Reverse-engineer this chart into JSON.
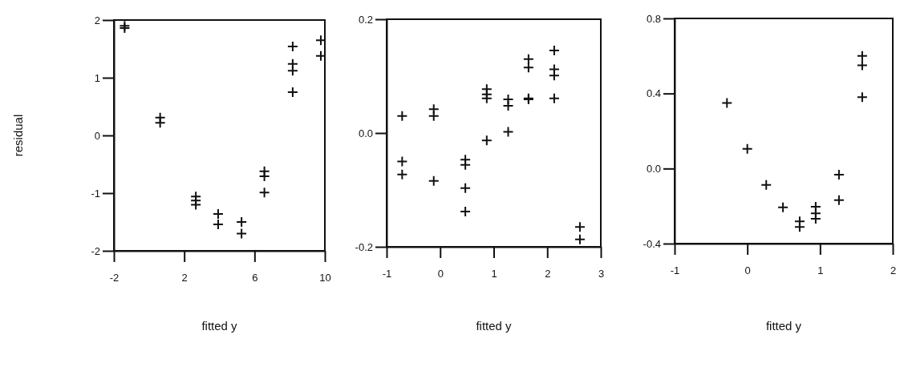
{
  "chart_data": [
    {
      "type": "scatter",
      "ylabel": "residual",
      "xlabel": "fitted y",
      "xlim": [
        -2,
        10
      ],
      "xticks": [
        -2,
        2,
        6,
        10
      ],
      "ylim": [
        -2,
        2
      ],
      "yticks": [
        -2,
        -1,
        0,
        1,
        2
      ],
      "marker": "cross",
      "grid": false,
      "series": [
        {
          "color": "#111111",
          "x": [
            -1.39,
            -1.39,
            0.63,
            0.63,
            2.66,
            2.66,
            2.66,
            3.93,
            3.93,
            5.26,
            5.26,
            6.56,
            6.56,
            6.56,
            8.17,
            8.17,
            8.17,
            8.17,
            9.77,
            9.77
          ],
          "values": [
            1.9,
            1.86,
            0.31,
            0.22,
            -1.06,
            -1.13,
            -1.2,
            -1.36,
            -1.54,
            -1.5,
            -1.7,
            -0.62,
            -0.71,
            -0.99,
            1.54,
            1.24,
            1.12,
            0.75,
            1.65,
            1.38
          ]
        }
      ]
    },
    {
      "type": "scatter",
      "xlabel": "fitted y",
      "xlim": [
        -1,
        3
      ],
      "xticks": [
        -1,
        0,
        1,
        2,
        3
      ],
      "ylim": [
        -0.2,
        0.2
      ],
      "yticks": [
        {
          "value": -0.2,
          "label": "-0.2"
        },
        {
          "value": 0,
          "label": "0.0"
        },
        {
          "value": 0.2,
          "label": "0.2"
        }
      ],
      "marker": "cross",
      "grid": false,
      "series": [
        {
          "color": "#111111",
          "x": [
            -0.71,
            -0.71,
            -0.71,
            -0.12,
            -0.12,
            -0.12,
            0.47,
            0.47,
            0.47,
            0.47,
            0.87,
            0.87,
            0.87,
            0.87,
            1.27,
            1.27,
            1.27,
            1.65,
            1.65,
            1.65,
            1.65,
            2.13,
            2.13,
            2.13,
            2.13,
            2.61,
            2.61
          ],
          "values": [
            0.03,
            -0.05,
            -0.073,
            0.042,
            0.03,
            -0.084,
            -0.047,
            -0.056,
            -0.097,
            -0.138,
            0.077,
            0.068,
            0.061,
            -0.013,
            0.059,
            0.048,
            0.002,
            0.13,
            0.115,
            0.061,
            0.059,
            0.145,
            0.112,
            0.101,
            0.061,
            -0.165,
            -0.187
          ]
        }
      ]
    },
    {
      "type": "scatter",
      "xlabel": "fitted y",
      "xlim": [
        -1,
        2
      ],
      "xticks": [
        -1,
        0,
        1,
        2
      ],
      "ylim": [
        -0.4,
        0.8
      ],
      "yticks": [
        {
          "value": -0.4,
          "label": "-0.4"
        },
        {
          "value": 0,
          "label": "0.0"
        },
        {
          "value": 0.4,
          "label": "0.4"
        },
        {
          "value": 0.8,
          "label": "0.8"
        }
      ],
      "marker": "cross",
      "grid": false,
      "series": [
        {
          "color": "#111111",
          "x": [
            -0.28,
            0,
            0.26,
            0.49,
            0.72,
            0.72,
            0.94,
            0.94,
            0.94,
            1.26,
            1.26,
            1.58,
            1.58,
            1.58
          ],
          "values": [
            0.35,
            0.105,
            -0.087,
            -0.207,
            -0.282,
            -0.311,
            -0.204,
            -0.239,
            -0.268,
            -0.033,
            -0.168,
            0.6,
            0.55,
            0.38
          ]
        }
      ]
    }
  ]
}
